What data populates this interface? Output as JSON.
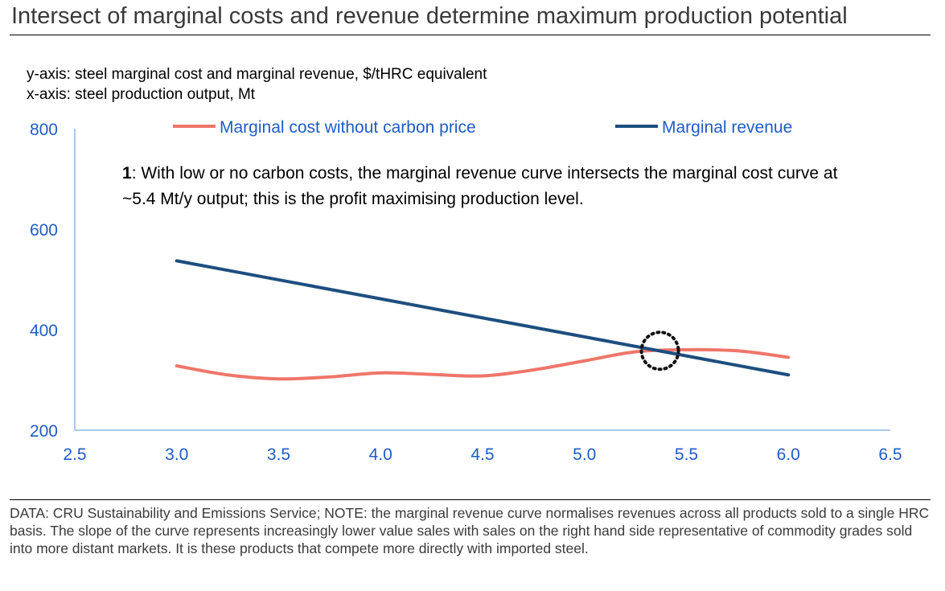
{
  "title": "Intersect of marginal costs and revenue determine maximum production potential",
  "axis_notes": {
    "y": "y-axis: steel marginal cost and marginal revenue, $/tHRC equivalent",
    "x": "x-axis: steel production output, Mt"
  },
  "annotation": {
    "number": "1",
    "text": ": With low or no carbon costs, the marginal revenue curve intersects the marginal cost curve at ~5.4 Mt/y output; this is the profit maximising production level."
  },
  "footnote": "DATA: CRU Sustainability and Emissions Service; NOTE: the marginal revenue curve normalises revenues across all products sold to a single HRC basis. The slope of the curve represents increasingly lower value sales with sales on the right hand side representative of commodity grades sold into more distant markets. It is these products that compete more directly with imported steel.",
  "colors": {
    "cost": "#ef7669",
    "revenue": "#1d4e7f",
    "axis": "#8fb5e6",
    "tick": "#1f5cc4"
  },
  "chart_data": {
    "type": "line",
    "title": "",
    "xlim": [
      2.5,
      6.5
    ],
    "ylim": [
      200,
      800
    ],
    "x_ticks": [
      "2.5",
      "3.0",
      "3.5",
      "4.0",
      "4.5",
      "5.0",
      "5.5",
      "6.0",
      "6.5"
    ],
    "y_ticks": [
      "200",
      "400",
      "600",
      "800"
    ],
    "legend_position": "top",
    "series": [
      {
        "name": "Marginal cost without carbon price",
        "x": [
          3.0,
          3.25,
          3.5,
          3.75,
          4.0,
          4.25,
          4.5,
          4.75,
          5.0,
          5.25,
          5.5,
          5.75,
          6.0
        ],
        "y": [
          328,
          310,
          302,
          306,
          314,
          311,
          308,
          320,
          338,
          356,
          360,
          358,
          345
        ]
      },
      {
        "name": "Marginal revenue",
        "x": [
          3.0,
          6.0
        ],
        "y": [
          537,
          310
        ]
      }
    ],
    "highlight": {
      "x": 5.37,
      "y": 358
    }
  }
}
